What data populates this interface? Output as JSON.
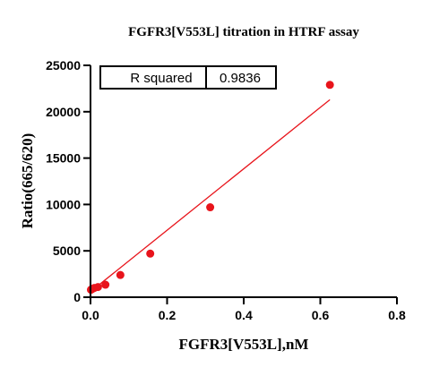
{
  "chart_data": {
    "type": "scatter",
    "title": "FGFR3[V553L] titration in HTRF assay",
    "xlabel": "FGFR3[V553L],nM",
    "ylabel": "Ratio(665/620)",
    "xlim": [
      0,
      0.8
    ],
    "ylim": [
      0,
      25000
    ],
    "x_ticks": [
      0.0,
      0.2,
      0.4,
      0.6,
      0.8
    ],
    "x_tick_labels": [
      "0.0",
      "0.2",
      "0.4",
      "0.6",
      "0.8"
    ],
    "y_ticks": [
      0,
      5000,
      10000,
      15000,
      20000,
      25000
    ],
    "y_tick_labels": [
      "0",
      "5000",
      "10000",
      "15000",
      "20000",
      "25000"
    ],
    "grid": false,
    "series": [
      {
        "color": "#e8141b",
        "points": [
          {
            "x": 0.0012,
            "y": 800
          },
          {
            "x": 0.0024,
            "y": 850
          },
          {
            "x": 0.0049,
            "y": 900
          },
          {
            "x": 0.0098,
            "y": 1000
          },
          {
            "x": 0.0195,
            "y": 1100
          },
          {
            "x": 0.039,
            "y": 1350
          },
          {
            "x": 0.078,
            "y": 2400
          },
          {
            "x": 0.156,
            "y": 4700
          },
          {
            "x": 0.3125,
            "y": 9700
          },
          {
            "x": 0.625,
            "y": 22900
          }
        ]
      }
    ],
    "fit_line": {
      "color": "#e8141b",
      "x": [
        0.0,
        0.625
      ],
      "y": [
        600,
        21300
      ]
    },
    "stats_box": {
      "label": "R squared",
      "value": "0.9836"
    }
  }
}
